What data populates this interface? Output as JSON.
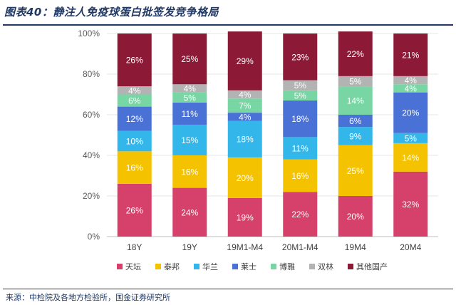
{
  "title": "图表40：静注人免疫球蛋白批签发竞争格局",
  "source": "来源：中检院及各地方检验所，国金证券研究所",
  "chart_data": {
    "type": "bar",
    "stacked": true,
    "categories": [
      "18Y",
      "19Y",
      "19M1-M4",
      "20M1-M4",
      "19M4",
      "20M4"
    ],
    "ylim": [
      0,
      100
    ],
    "yticks": [
      "0%",
      "20%",
      "40%",
      "60%",
      "80%",
      "100%"
    ],
    "legend_position": "bottom",
    "series": [
      {
        "name": "天坛",
        "color": "#d5416a",
        "values": [
          26,
          24,
          19,
          22,
          20,
          32
        ]
      },
      {
        "name": "泰邦",
        "color": "#f5c200",
        "values": [
          16,
          16,
          20,
          16,
          25,
          14
        ]
      },
      {
        "name": "华兰",
        "color": "#33b7ea",
        "values": [
          10,
          15,
          18,
          11,
          9,
          5
        ]
      },
      {
        "name": "莱士",
        "color": "#4a71d6",
        "values": [
          12,
          11,
          4,
          18,
          6,
          20
        ]
      },
      {
        "name": "博雅",
        "color": "#77d6a4",
        "values": [
          6,
          5,
          7,
          5,
          14,
          4
        ]
      },
      {
        "name": "双林",
        "color": "#b3b3b3",
        "values": [
          4,
          4,
          4,
          5,
          5,
          4
        ]
      },
      {
        "name": "其他国产",
        "color": "#8c1a36",
        "values": [
          26,
          25,
          29,
          23,
          22,
          21
        ]
      }
    ]
  }
}
